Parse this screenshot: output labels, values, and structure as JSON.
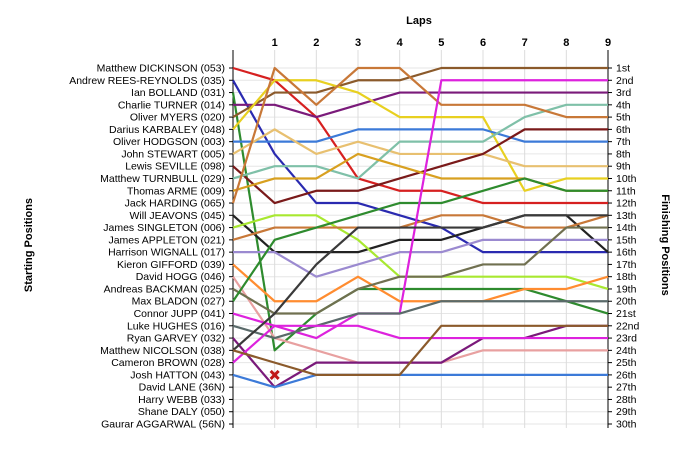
{
  "chart_data": {
    "type": "line",
    "title": "",
    "xlabel": "Laps",
    "ylabel_left": "Starting Positions",
    "ylabel_right": "Finishing Positions",
    "x": [
      0,
      1,
      2,
      3,
      4,
      5,
      6,
      7,
      8,
      9
    ],
    "x_tick_labels": [
      "1",
      "2",
      "3",
      "4",
      "5",
      "6",
      "7",
      "8",
      "9"
    ],
    "y_range": [
      1,
      30
    ],
    "grid": true,
    "drivers": [
      "Matthew DICKINSON (053)",
      "Andrew REES-REYNOLDS (035)",
      "Ian BOLLAND (031)",
      "Charlie TURNER (014)",
      "Oliver MYERS (020)",
      "Darius KARBALEY (048)",
      "Oliver HODGSON (003)",
      "John STEWART (005)",
      "Lewis SEVILLE (098)",
      "Matthew TURNBULL (029)",
      "Thomas ARME (009)",
      "Jack HARDING (065)",
      "Will JEAVONS (045)",
      "James SINGLETON (006)",
      "James APPLETON (021)",
      "Harrison WIGNALL (017)",
      "Kieron GIFFORD (039)",
      "David HOGG (046)",
      "Andreas BACKMAN (025)",
      "Max BLADON (027)",
      "Connor JUPP (041)",
      "Luke HUGHES (016)",
      "Ryan GARVEY (032)",
      "Matthew NICOLSON (038)",
      "Cameron BROWN (028)",
      "Josh HATTON (043)",
      "David LANE (36N)",
      "Harry WEBB (033)",
      "Shane DALY (050)",
      "Gaurar AGGARWAL (56N)"
    ],
    "finishing_labels": [
      "1st",
      "2nd",
      "3rd",
      "4th",
      "5th",
      "6th",
      "7th",
      "8th",
      "9th",
      "10th",
      "11th",
      "12th",
      "13th",
      "14th",
      "15th",
      "16th",
      "17th",
      "18th",
      "19th",
      "20th",
      "21st",
      "22nd",
      "23rd",
      "24th",
      "25th",
      "26th",
      "27th",
      "28th",
      "29th",
      "30th"
    ],
    "series": [
      {
        "color": "#d62020",
        "values": [
          1,
          2,
          5,
          10,
          11,
          11,
          12,
          12,
          12,
          12
        ]
      },
      {
        "color": "#2a2ab0",
        "values": [
          2,
          8,
          12,
          12,
          13,
          14,
          16,
          16,
          16,
          16
        ]
      },
      {
        "color": "#2e8b2e",
        "values": [
          3,
          24,
          21,
          19,
          19,
          19,
          19,
          19,
          20,
          21
        ]
      },
      {
        "color": "#7a1a7a",
        "values": [
          4,
          4,
          5,
          4,
          3,
          3,
          3,
          3,
          3,
          3
        ]
      },
      {
        "color": "#8b5a2b",
        "values": [
          5,
          3,
          3,
          2,
          2,
          1,
          1,
          1,
          1,
          1
        ]
      },
      {
        "color": "#e8d020",
        "values": [
          6,
          2,
          2,
          3,
          5,
          5,
          5,
          11,
          10,
          10
        ]
      },
      {
        "color": "#3c7ad8",
        "values": [
          7,
          7,
          7,
          6,
          6,
          6,
          6,
          7,
          7,
          7
        ]
      },
      {
        "color": "#e8c070",
        "values": [
          8,
          6,
          8,
          7,
          8,
          8,
          8,
          9,
          9,
          9
        ]
      },
      {
        "color": "#7a1a1a",
        "values": [
          9,
          12,
          11,
          11,
          10,
          9,
          8,
          6,
          6,
          6
        ]
      },
      {
        "color": "#7fc0a8",
        "values": [
          10,
          9,
          9,
          10,
          7,
          7,
          7,
          5,
          4,
          4
        ]
      },
      {
        "color": "#d8a020",
        "values": [
          11,
          10,
          10,
          8,
          9,
          10,
          10,
          10,
          11,
          11
        ]
      },
      {
        "color": "#c87838",
        "values": [
          12,
          1,
          4,
          1,
          1,
          4,
          4,
          4,
          5,
          5
        ]
      },
      {
        "color": "#222222",
        "values": [
          13,
          16,
          16,
          16,
          15,
          15,
          14,
          13,
          13,
          16
        ]
      },
      {
        "color": "#a8e830",
        "values": [
          14,
          13,
          13,
          15,
          18,
          18,
          18,
          18,
          18,
          19
        ]
      },
      {
        "color": "#c87838",
        "values": [
          15,
          14,
          14,
          14,
          14,
          13,
          13,
          14,
          14,
          13
        ]
      },
      {
        "color": "#9b8ad0",
        "values": [
          16,
          16,
          18,
          17,
          16,
          16,
          15,
          15,
          15,
          15
        ]
      },
      {
        "color": "#ff8c30",
        "values": [
          17,
          20,
          20,
          18,
          20,
          20,
          20,
          19,
          19,
          18
        ]
      },
      {
        "color": "#e8a0a0",
        "values": [
          18,
          23,
          24,
          25,
          25,
          25,
          24,
          24,
          24,
          24
        ]
      },
      {
        "color": "#707050",
        "values": [
          19,
          21,
          21,
          19,
          18,
          18,
          17,
          17,
          14,
          14
        ]
      },
      {
        "color": "#2e8b2e",
        "values": [
          20,
          15,
          14,
          13,
          12,
          12,
          11,
          10,
          11,
          11
        ]
      },
      {
        "color": "#dd22dd",
        "values": [
          21,
          22,
          23,
          21,
          21,
          2,
          2,
          2,
          2,
          2
        ]
      },
      {
        "color": "#5a6a6a",
        "values": [
          22,
          23,
          22,
          21,
          21,
          20,
          20,
          20,
          20,
          20
        ]
      },
      {
        "color": "#7a1a7a",
        "values": [
          23,
          27,
          25,
          25,
          25,
          25,
          23,
          23,
          22,
          22
        ]
      },
      {
        "color": "#3a3a3a",
        "values": [
          24,
          21,
          17,
          14,
          14,
          14,
          14,
          13,
          13,
          13
        ]
      },
      {
        "color": "#dd22dd",
        "values": [
          25,
          22,
          22,
          22,
          23,
          23,
          23,
          23,
          23,
          23
        ]
      },
      {
        "color": "#3c7ad8",
        "values": [
          26,
          27,
          26,
          26,
          26,
          26,
          26,
          26,
          26,
          26
        ]
      },
      {
        "color": "#8b5a2b",
        "values": [
          24,
          25,
          26,
          26,
          26,
          22,
          22,
          22,
          22,
          22
        ]
      }
    ],
    "annotations": [
      {
        "type": "retired-marker",
        "x": 1,
        "y": 26
      }
    ]
  }
}
